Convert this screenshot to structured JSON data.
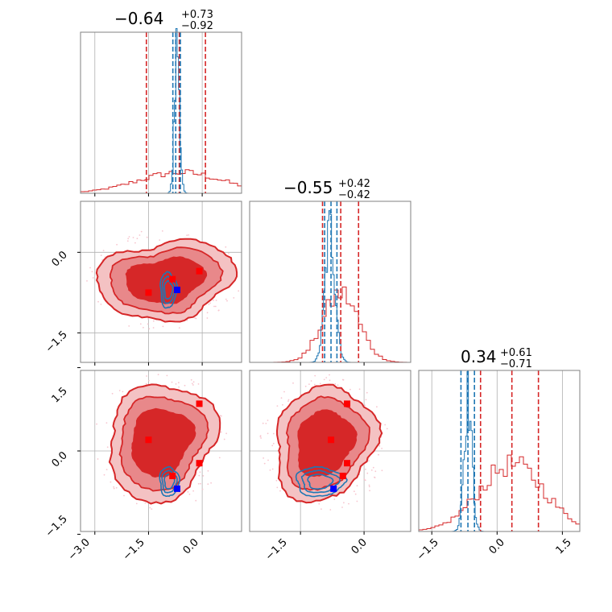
{
  "colors": {
    "red": "#d62728",
    "red_mid": "#e8888a",
    "red_light": "#f4c2c3",
    "blue": "#1f77b4",
    "marker_red": "#ff0000",
    "marker_blue": "#0000ff",
    "grid": "#b0b0b0",
    "scatter": "#f7c6cf"
  },
  "chart_data": {
    "type": "corner",
    "grid": true,
    "panels": [
      {
        "id": "p0_hist",
        "type": "histogram",
        "title": {
          "value": "−0.64",
          "upper": "+0.73",
          "lower": "−0.92"
        },
        "xlim": [
          -3.4,
          1.1
        ],
        "xticks": [
          -3.0,
          -1.5,
          0.0
        ],
        "red_quantiles": [
          -1.56,
          -0.64,
          0.09
        ],
        "blue_quantiles": [
          -0.82,
          -0.74,
          -0.61
        ],
        "blue_mode": -0.7
      },
      {
        "id": "p1_2d",
        "type": "2d",
        "xlim": [
          -3.4,
          1.1
        ],
        "ylim": [
          -2.05,
          0.95
        ],
        "yticks": [
          -1.5,
          0.0
        ],
        "ytick_labels": [
          "−1.5",
          "0.0"
        ],
        "red_points": [
          [
            -1.5,
            -0.75
          ],
          [
            -0.83,
            -0.5
          ],
          [
            -0.08,
            -0.35
          ]
        ],
        "blue_point": [
          -0.7,
          -0.7
        ]
      },
      {
        "id": "p2_2d",
        "type": "2d",
        "xlim": [
          -3.4,
          1.1
        ],
        "ylim": [
          -1.45,
          1.45
        ],
        "xticks": [
          -3.0,
          -1.5,
          0.0
        ],
        "xtick_labels": [
          "−3.0",
          "−1.5",
          "0.0"
        ],
        "yticks": [
          -1.5,
          0.0,
          1.5
        ],
        "ytick_labels": [
          "−1.5",
          "0.0",
          "1.5"
        ],
        "red_points": [
          [
            -1.5,
            0.2
          ],
          [
            -0.08,
            0.85
          ],
          [
            -0.08,
            -0.22
          ],
          [
            -0.83,
            -0.45
          ]
        ],
        "blue_point": [
          -0.7,
          -0.68
        ]
      },
      {
        "id": "p3_hist",
        "type": "histogram",
        "title": {
          "value": "−0.55",
          "upper": "+0.42",
          "lower": "−0.42"
        },
        "xlim": [
          -2.7,
          1.1
        ],
        "red_quantiles": [
          -0.98,
          -0.55,
          -0.13
        ],
        "blue_quantiles": [
          -0.93,
          -0.78,
          -0.64
        ],
        "blue_mode": -0.8
      },
      {
        "id": "p4_2d",
        "type": "2d",
        "xlim": [
          -2.7,
          1.1
        ],
        "ylim": [
          -1.45,
          1.45
        ],
        "xticks": [
          -1.5,
          0.0
        ],
        "xtick_labels": [
          "−1.5",
          "0.0"
        ],
        "red_points": [
          [
            -0.78,
            0.2
          ],
          [
            -0.4,
            0.85
          ],
          [
            -0.4,
            -0.22
          ],
          [
            -0.5,
            -0.45
          ]
        ],
        "blue_point": [
          -0.72,
          -0.68
        ]
      },
      {
        "id": "p5_hist",
        "type": "histogram",
        "title": {
          "value": "0.34",
          "upper": "+0.61",
          "lower": "−0.71"
        },
        "xlim": [
          -1.8,
          1.9
        ],
        "xticks": [
          -1.5,
          0.0,
          1.5
        ],
        "xtick_labels": [
          "−1.5",
          "0.0",
          "1.5"
        ],
        "red_quantiles": [
          -0.38,
          0.34,
          0.95
        ],
        "blue_quantiles": [
          -0.83,
          -0.67,
          -0.52
        ],
        "blue_mode": -0.65
      }
    ]
  }
}
